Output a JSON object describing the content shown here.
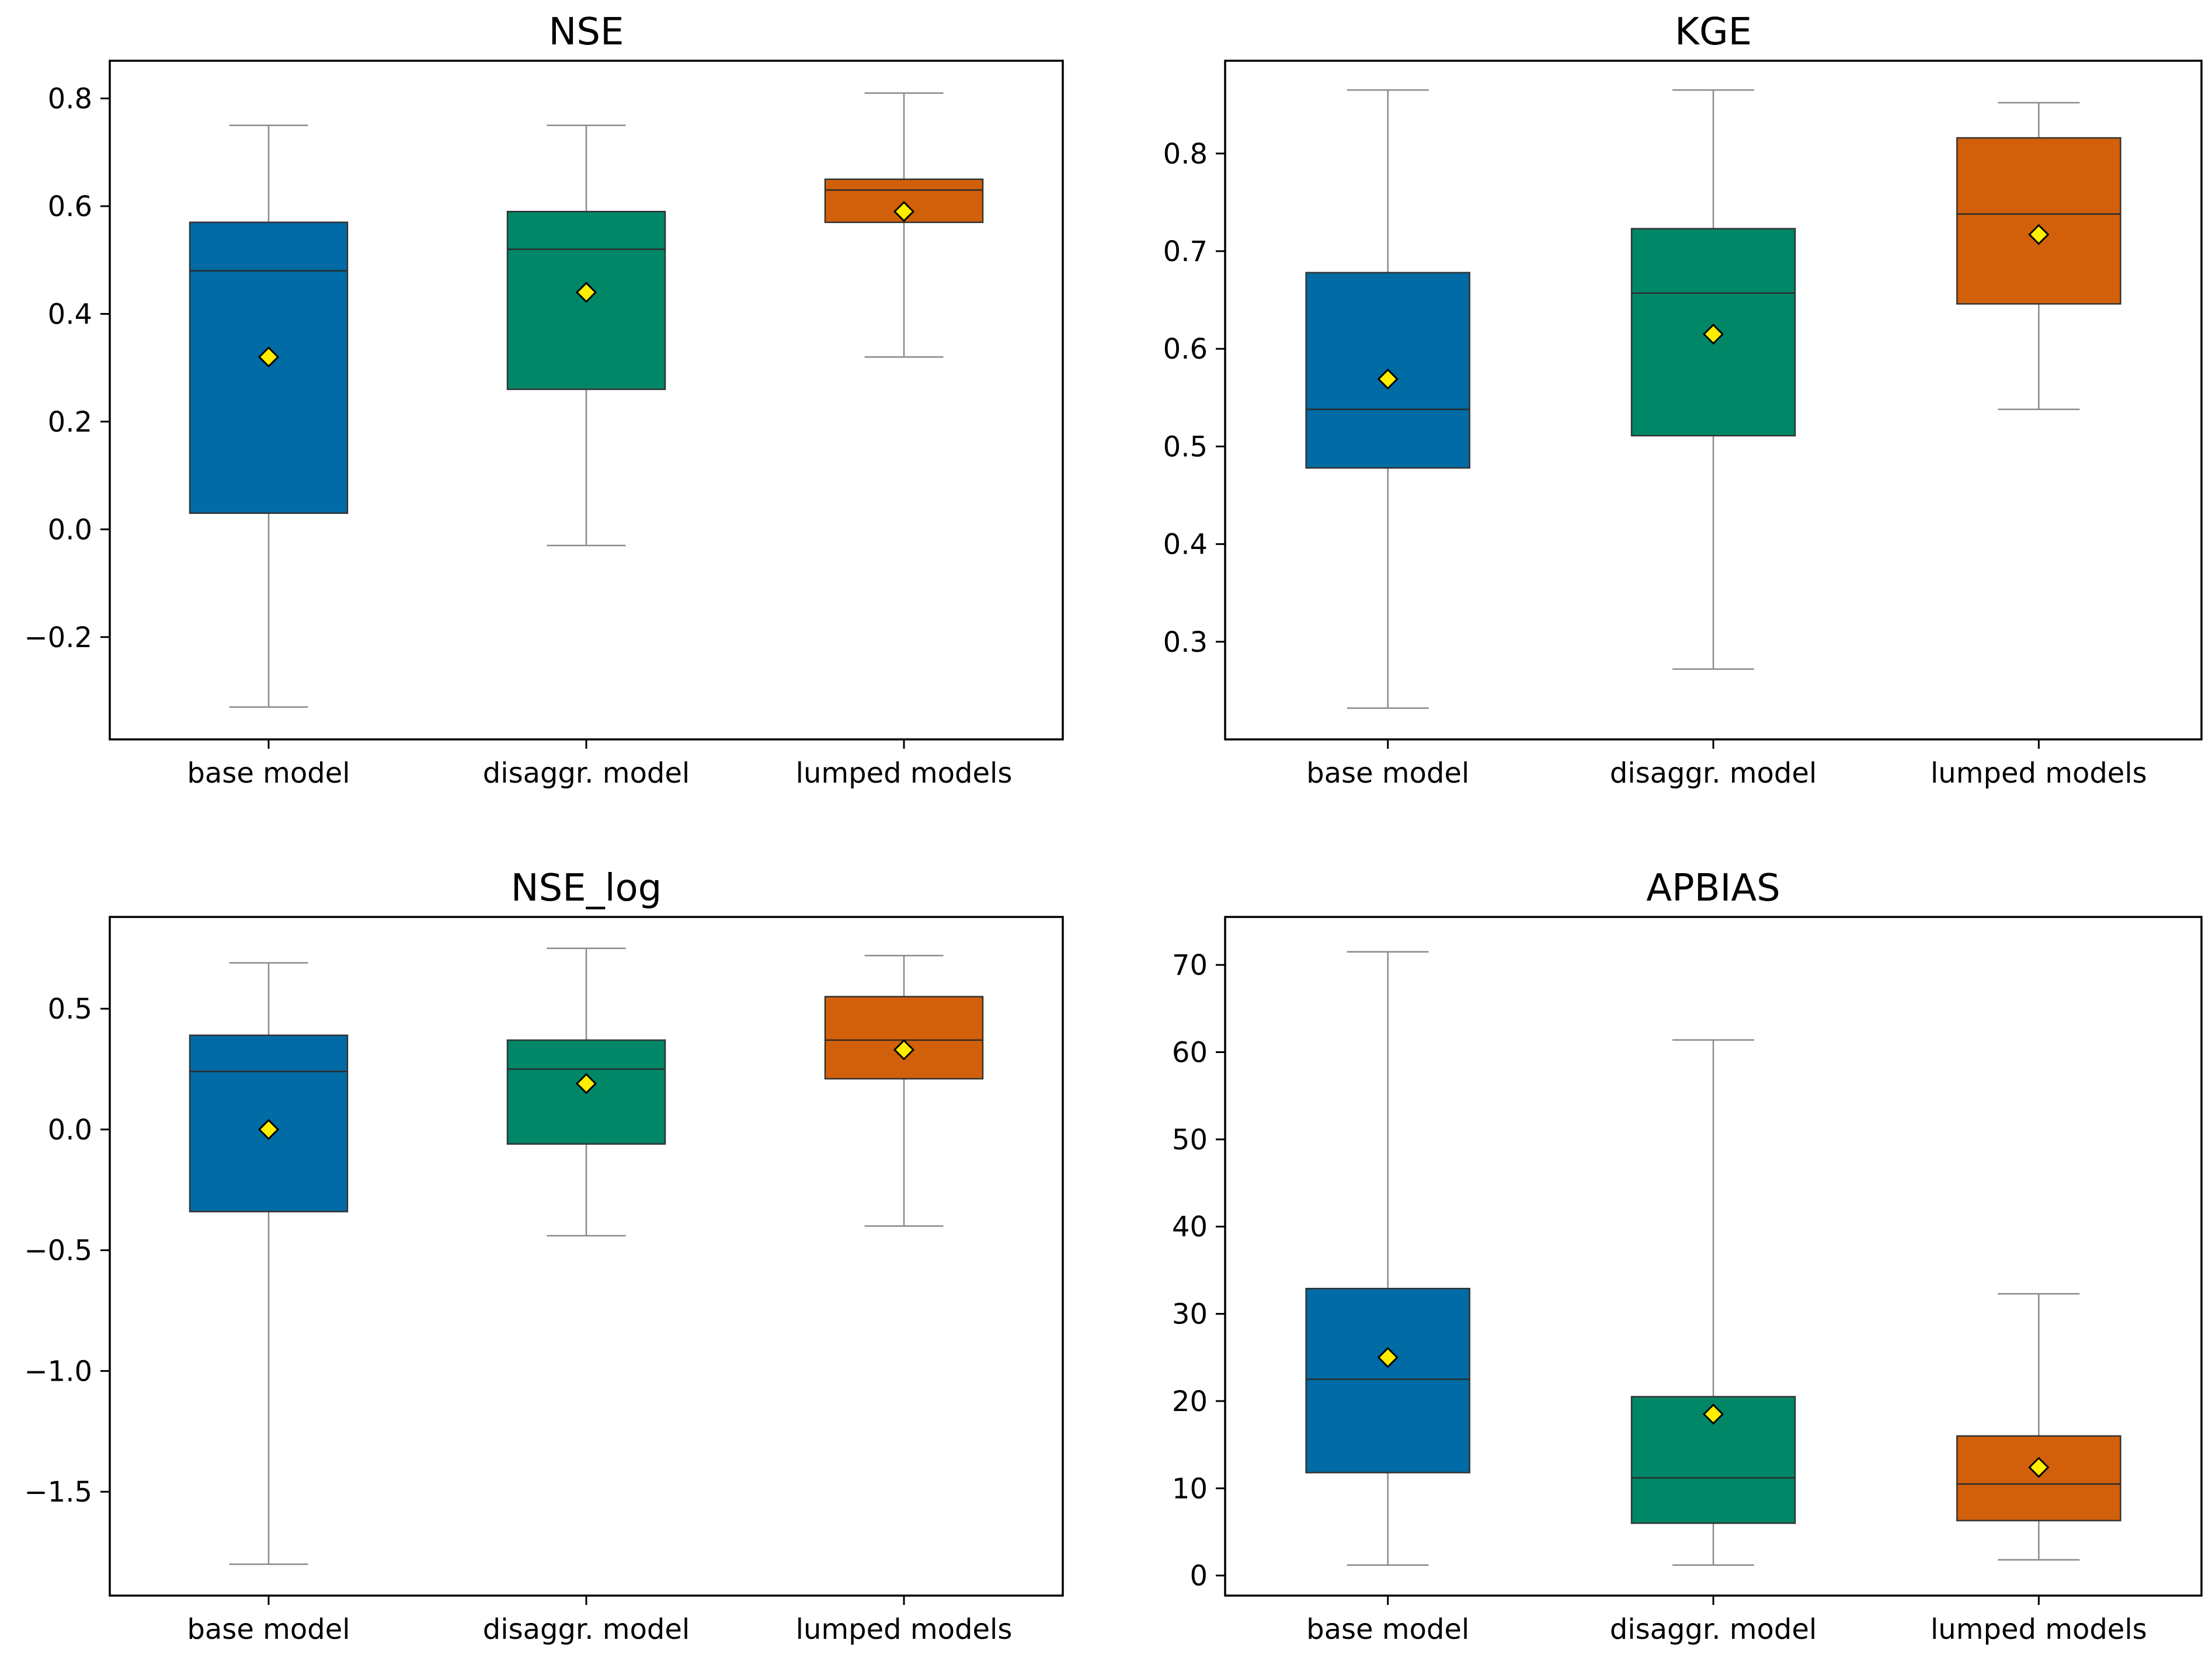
{
  "chart_data": [
    {
      "type": "box",
      "title": "NSE",
      "categories": [
        "base model",
        "disaggr. model",
        "lumped models"
      ],
      "colors": [
        "#006ba4",
        "#008767",
        "#d2600a"
      ],
      "ylim": [
        -0.39,
        0.87
      ],
      "yticks": [
        -0.2,
        0.0,
        0.2,
        0.4,
        0.6,
        0.8
      ],
      "ytick_labels": [
        "−0.2",
        "0.0",
        "0.2",
        "0.4",
        "0.6",
        "0.8"
      ],
      "boxes": [
        {
          "whislo": -0.33,
          "q1": 0.03,
          "med": 0.48,
          "q3": 0.57,
          "whishi": 0.75,
          "mean": 0.32
        },
        {
          "whislo": -0.03,
          "q1": 0.26,
          "med": 0.52,
          "q3": 0.59,
          "whishi": 0.75,
          "mean": 0.44
        },
        {
          "whislo": 0.32,
          "q1": 0.57,
          "med": 0.63,
          "q3": 0.65,
          "whishi": 0.81,
          "mean": 0.59
        }
      ]
    },
    {
      "type": "box",
      "title": "KGE",
      "categories": [
        "base model",
        "disaggr. model",
        "lumped models"
      ],
      "colors": [
        "#006ba4",
        "#008767",
        "#d2600a"
      ],
      "ylim": [
        0.2,
        0.895
      ],
      "yticks": [
        0.3,
        0.4,
        0.5,
        0.6,
        0.7,
        0.8
      ],
      "ytick_labels": [
        "0.3",
        "0.4",
        "0.5",
        "0.6",
        "0.7",
        "0.8"
      ],
      "boxes": [
        {
          "whislo": 0.232,
          "q1": 0.478,
          "med": 0.538,
          "q3": 0.678,
          "whishi": 0.865,
          "mean": 0.569
        },
        {
          "whislo": 0.272,
          "q1": 0.511,
          "med": 0.657,
          "q3": 0.723,
          "whishi": 0.865,
          "mean": 0.615
        },
        {
          "whislo": 0.538,
          "q1": 0.646,
          "med": 0.738,
          "q3": 0.816,
          "whishi": 0.852,
          "mean": 0.717
        }
      ]
    },
    {
      "type": "box",
      "title": "NSE_log",
      "categories": [
        "base model",
        "disaggr. model",
        "lumped models"
      ],
      "colors": [
        "#006ba4",
        "#008767",
        "#d2600a"
      ],
      "ylim": [
        -1.93,
        0.88
      ],
      "yticks": [
        -1.5,
        -1.0,
        -0.5,
        0.0,
        0.5
      ],
      "ytick_labels": [
        "−1.5",
        "−1.0",
        "−0.5",
        "0.0",
        "0.5"
      ],
      "boxes": [
        {
          "whislo": -1.8,
          "q1": -0.34,
          "med": 0.24,
          "q3": 0.39,
          "whishi": 0.69,
          "mean": 0.0
        },
        {
          "whislo": -0.44,
          "q1": -0.06,
          "med": 0.25,
          "q3": 0.37,
          "whishi": 0.75,
          "mean": 0.19
        },
        {
          "whislo": -0.4,
          "q1": 0.21,
          "med": 0.37,
          "q3": 0.55,
          "whishi": 0.72,
          "mean": 0.33
        }
      ]
    },
    {
      "type": "box",
      "title": "APBIAS",
      "categories": [
        "base model",
        "disaggr. model",
        "lumped models"
      ],
      "colors": [
        "#006ba4",
        "#008767",
        "#d2600a"
      ],
      "ylim": [
        -2.3,
        75.5
      ],
      "yticks": [
        0,
        10,
        20,
        30,
        40,
        50,
        60,
        70
      ],
      "ytick_labels": [
        "0",
        "10",
        "20",
        "30",
        "40",
        "50",
        "60",
        "70"
      ],
      "boxes": [
        {
          "whislo": 1.2,
          "q1": 11.8,
          "med": 22.5,
          "q3": 32.9,
          "whishi": 71.5,
          "mean": 25.0
        },
        {
          "whislo": 1.2,
          "q1": 6.0,
          "med": 11.2,
          "q3": 20.5,
          "whishi": 61.4,
          "mean": 18.5
        },
        {
          "whislo": 1.8,
          "q1": 6.3,
          "med": 10.5,
          "q3": 16.0,
          "whishi": 32.3,
          "mean": 12.4
        }
      ]
    }
  ]
}
